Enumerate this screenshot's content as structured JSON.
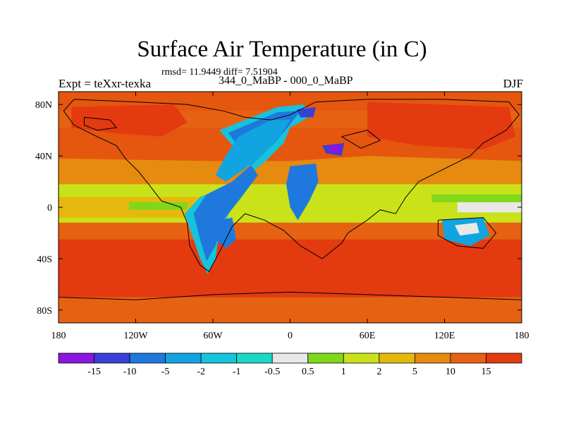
{
  "chart_data": {
    "type": "heatmap",
    "title": "Surface Air Temperature (in C)",
    "stats": "rmsd= 11.9449 diff= 7.51904",
    "left_label": "Expt = teXxr-texka",
    "center_label": "344_0_MaBP - 000_0_MaBP",
    "right_label": "DJF",
    "x_range": [
      -180,
      180
    ],
    "y_range": [
      -90,
      90
    ],
    "x_ticks": [
      {
        "value": -180,
        "label": "180"
      },
      {
        "value": -120,
        "label": "120W"
      },
      {
        "value": -60,
        "label": "60W"
      },
      {
        "value": 0,
        "label": "0"
      },
      {
        "value": 60,
        "label": "60E"
      },
      {
        "value": 120,
        "label": "120E"
      },
      {
        "value": 180,
        "label": "180"
      }
    ],
    "y_ticks": [
      {
        "value": 80,
        "label": "80N"
      },
      {
        "value": 40,
        "label": "40N"
      },
      {
        "value": 0,
        "label": "0"
      },
      {
        "value": -40,
        "label": "40S"
      },
      {
        "value": -80,
        "label": "80S"
      }
    ],
    "colorbar": {
      "labels": [
        "-15",
        "-10",
        "-5",
        "-2",
        "-1",
        "-0.5",
        "0.5",
        "1",
        "2",
        "5",
        "10",
        "15"
      ],
      "colors": [
        "#8a16e0",
        "#3a3fd6",
        "#1f79dd",
        "#11a4e0",
        "#16c3dc",
        "#19d9c4",
        "#e8e8e8",
        "#7fd81a",
        "#c9e21a",
        "#e6b80e",
        "#e68a10",
        "#e66212",
        "#e33a10"
      ]
    },
    "background_color": "#e5560f",
    "regions": [
      {
        "name": "warm-band-north",
        "value": 10,
        "color": "#e66212",
        "points": [
          [
            -180,
            62
          ],
          [
            180,
            62
          ],
          [
            180,
            75
          ],
          [
            -180,
            75
          ]
        ]
      },
      {
        "name": "warm-subtropics-north",
        "value": 5,
        "color": "#e68a10",
        "points": [
          [
            -180,
            38
          ],
          [
            -60,
            36
          ],
          [
            0,
            36
          ],
          [
            60,
            40
          ],
          [
            180,
            36
          ],
          [
            180,
            18
          ],
          [
            -180,
            18
          ]
        ]
      },
      {
        "name": "tropics-mild",
        "value": 2,
        "color": "#c9e21a",
        "points": [
          [
            -180,
            18
          ],
          [
            180,
            18
          ],
          [
            180,
            -12
          ],
          [
            -180,
            -12
          ]
        ]
      },
      {
        "name": "tropics-warm-strip",
        "value": 5,
        "color": "#e6b80e",
        "points": [
          [
            -180,
            8
          ],
          [
            -60,
            8
          ],
          [
            -60,
            -8
          ],
          [
            -180,
            -8
          ]
        ]
      },
      {
        "name": "equator-neutral-east",
        "value": 0,
        "color": "#e8e8e8",
        "points": [
          [
            130,
            4
          ],
          [
            180,
            4
          ],
          [
            180,
            -4
          ],
          [
            130,
            -4
          ]
        ]
      },
      {
        "name": "equator-green-east",
        "value": 1,
        "color": "#7fd81a",
        "points": [
          [
            110,
            10
          ],
          [
            180,
            10
          ],
          [
            180,
            4
          ],
          [
            110,
            4
          ]
        ]
      },
      {
        "name": "equator-green-west",
        "value": 1,
        "color": "#7fd81a",
        "points": [
          [
            -125,
            4
          ],
          [
            -80,
            4
          ],
          [
            -80,
            -2
          ],
          [
            -125,
            -2
          ]
        ]
      },
      {
        "name": "southern-warm",
        "value": 10,
        "color": "#e66212",
        "points": [
          [
            -180,
            -12
          ],
          [
            180,
            -12
          ],
          [
            180,
            -25
          ],
          [
            -180,
            -25
          ]
        ]
      },
      {
        "name": "southern-hot",
        "value": 15,
        "color": "#e33a10",
        "points": [
          [
            -180,
            -25
          ],
          [
            180,
            -25
          ],
          [
            180,
            -70
          ],
          [
            -180,
            -70
          ]
        ]
      },
      {
        "name": "antarctic-warm",
        "value": 10,
        "color": "#e66212",
        "points": [
          [
            -180,
            -70
          ],
          [
            180,
            -70
          ],
          [
            180,
            -90
          ],
          [
            -180,
            -90
          ]
        ]
      },
      {
        "name": "north-hot-asia",
        "value": 15,
        "color": "#e33a10",
        "points": [
          [
            60,
            82
          ],
          [
            170,
            78
          ],
          [
            175,
            55
          ],
          [
            150,
            45
          ],
          [
            100,
            48
          ],
          [
            60,
            55
          ]
        ]
      },
      {
        "name": "north-hot-america",
        "value": 15,
        "color": "#e33a10",
        "points": [
          [
            -170,
            78
          ],
          [
            -90,
            80
          ],
          [
            -80,
            66
          ],
          [
            -100,
            55
          ],
          [
            -140,
            58
          ],
          [
            -170,
            62
          ]
        ]
      },
      {
        "name": "pangea-cool-outer",
        "value": -1,
        "color": "#16c3dc",
        "points": [
          [
            -55,
            60
          ],
          [
            -10,
            78
          ],
          [
            10,
            80
          ],
          [
            18,
            72
          ],
          [
            0,
            62
          ],
          [
            -5,
            50
          ],
          [
            -20,
            35
          ],
          [
            -40,
            20
          ],
          [
            -70,
            8
          ],
          [
            -82,
            -5
          ],
          [
            -75,
            -25
          ],
          [
            -70,
            -40
          ],
          [
            -64,
            -52
          ],
          [
            -58,
            -40
          ],
          [
            -55,
            -20
          ],
          [
            -45,
            0
          ],
          [
            -25,
            25
          ]
        ]
      },
      {
        "name": "pangea-cold",
        "value": -5,
        "color": "#1f79dd",
        "points": [
          [
            -48,
            58
          ],
          [
            -10,
            74
          ],
          [
            8,
            75
          ],
          [
            -2,
            62
          ],
          [
            -12,
            50
          ],
          [
            -28,
            35
          ],
          [
            -45,
            20
          ],
          [
            -65,
            10
          ],
          [
            -75,
            -5
          ],
          [
            -70,
            -25
          ],
          [
            -65,
            -42
          ],
          [
            -58,
            -30
          ],
          [
            -52,
            -10
          ],
          [
            -40,
            5
          ],
          [
            -25,
            25
          ]
        ]
      },
      {
        "name": "pangea-central",
        "value": -2,
        "color": "#11a4e0",
        "points": [
          [
            -40,
            55
          ],
          [
            -15,
            68
          ],
          [
            0,
            68
          ],
          [
            -8,
            55
          ],
          [
            -20,
            42
          ],
          [
            -35,
            30
          ],
          [
            -50,
            20
          ],
          [
            -58,
            25
          ],
          [
            -50,
            40
          ]
        ]
      },
      {
        "name": "east-cold-patch",
        "value": -5,
        "color": "#1f79dd",
        "points": [
          [
            0,
            32
          ],
          [
            20,
            34
          ],
          [
            22,
            20
          ],
          [
            15,
            5
          ],
          [
            6,
            -10
          ],
          [
            0,
            0
          ],
          [
            -3,
            18
          ]
        ]
      },
      {
        "name": "north-very-cold",
        "value": -10,
        "color": "#3a3fd6",
        "points": [
          [
            5,
            76
          ],
          [
            20,
            78
          ],
          [
            18,
            70
          ],
          [
            8,
            70
          ]
        ]
      },
      {
        "name": "north-very-cold-2",
        "value": -10,
        "color": "#3a3fd6",
        "points": [
          [
            25,
            48
          ],
          [
            42,
            50
          ],
          [
            40,
            40
          ],
          [
            28,
            42
          ]
        ]
      },
      {
        "name": "north-extreme-cold",
        "value": -15,
        "color": "#8a16e0",
        "points": [
          [
            30,
            48
          ],
          [
            40,
            49
          ],
          [
            38,
            42
          ],
          [
            31,
            43
          ]
        ]
      },
      {
        "name": "australia-cool",
        "value": -2,
        "color": "#11a4e0",
        "points": [
          [
            118,
            -10
          ],
          [
            150,
            -8
          ],
          [
            155,
            -22
          ],
          [
            140,
            -30
          ],
          [
            120,
            -25
          ]
        ]
      },
      {
        "name": "australia-neutral",
        "value": 0,
        "color": "#e8e8e8",
        "points": [
          [
            128,
            -14
          ],
          [
            145,
            -12
          ],
          [
            147,
            -20
          ],
          [
            132,
            -22
          ]
        ]
      },
      {
        "name": "africa-cold-spot",
        "value": -5,
        "color": "#1f79dd",
        "points": [
          [
            -55,
            -10
          ],
          [
            -45,
            -8
          ],
          [
            -42,
            -25
          ],
          [
            -50,
            -32
          ],
          [
            -58,
            -25
          ]
        ]
      }
    ],
    "coastlines": [
      [
        [
          -168,
          84
        ],
        [
          -120,
          82
        ],
        [
          -80,
          80
        ],
        [
          -52,
          75
        ],
        [
          -35,
          70
        ],
        [
          -15,
          68
        ],
        [
          0,
          72
        ],
        [
          20,
          82
        ],
        [
          60,
          84
        ],
        [
          120,
          84
        ],
        [
          170,
          82
        ],
        [
          178,
          72
        ],
        [
          168,
          60
        ],
        [
          150,
          50
        ],
        [
          140,
          40
        ],
        [
          120,
          30
        ],
        [
          100,
          20
        ],
        [
          90,
          8
        ],
        [
          82,
          -5
        ],
        [
          70,
          -2
        ],
        [
          60,
          -10
        ],
        [
          45,
          -20
        ],
        [
          40,
          -28
        ],
        [
          25,
          -40
        ],
        [
          8,
          -30
        ],
        [
          -5,
          -18
        ],
        [
          -20,
          -10
        ],
        [
          -35,
          -5
        ],
        [
          -45,
          -15
        ],
        [
          -55,
          -35
        ],
        [
          -63,
          -50
        ],
        [
          -70,
          -45
        ],
        [
          -78,
          -30
        ],
        [
          -80,
          -12
        ],
        [
          -85,
          0
        ],
        [
          -100,
          5
        ],
        [
          -110,
          18
        ],
        [
          -118,
          28
        ],
        [
          -128,
          38
        ],
        [
          -135,
          48
        ],
        [
          -150,
          55
        ],
        [
          -168,
          64
        ],
        [
          -176,
          75
        ],
        [
          -168,
          84
        ]
      ],
      [
        [
          115,
          -10
        ],
        [
          150,
          -8
        ],
        [
          160,
          -20
        ],
        [
          150,
          -32
        ],
        [
          130,
          -30
        ],
        [
          115,
          -22
        ],
        [
          115,
          -10
        ]
      ],
      [
        [
          -180,
          -70
        ],
        [
          -120,
          -72
        ],
        [
          -60,
          -68
        ],
        [
          0,
          -66
        ],
        [
          60,
          -68
        ],
        [
          120,
          -70
        ],
        [
          180,
          -72
        ]
      ],
      [
        [
          -160,
          70
        ],
        [
          -140,
          68
        ],
        [
          -135,
          62
        ],
        [
          -150,
          60
        ],
        [
          -160,
          64
        ],
        [
          -160,
          70
        ]
      ],
      [
        [
          40,
          55
        ],
        [
          60,
          60
        ],
        [
          70,
          52
        ],
        [
          55,
          46
        ],
        [
          40,
          55
        ]
      ]
    ]
  }
}
